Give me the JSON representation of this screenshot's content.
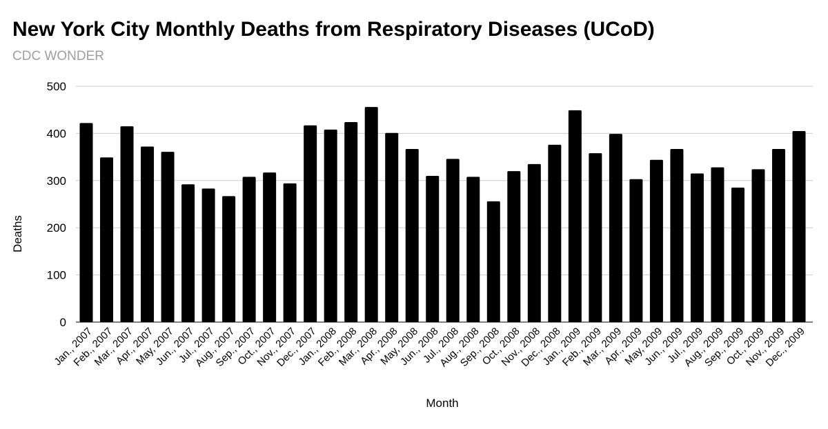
{
  "chart_data": {
    "type": "bar",
    "title": "New York City Monthly Deaths from Respiratory Diseases (UCoD)",
    "subtitle": "CDC WONDER",
    "xlabel": "Month",
    "ylabel": "Deaths",
    "ylim": [
      0,
      500
    ],
    "yticks": [
      0,
      100,
      200,
      300,
      400,
      500
    ],
    "grid": true,
    "bar_color": "#000000",
    "grid_color": "#cccccc",
    "categories": [
      "Jan., 2007",
      "Feb., 2007",
      "Mar., 2007",
      "Apr., 2007",
      "May, 2007",
      "Jun., 2007",
      "Jul., 2007",
      "Aug., 2007",
      "Sep., 2007",
      "Oct., 2007",
      "Nov., 2007",
      "Dec., 2007",
      "Jan., 2008",
      "Feb., 2008",
      "Mar., 2008",
      "Apr., 2008",
      "May, 2008",
      "Jun., 2008",
      "Jul., 2008",
      "Aug., 2008",
      "Sep., 2008",
      "Oct., 2008",
      "Nov., 2008",
      "Dec., 2008",
      "Jan., 2009",
      "Feb., 2009",
      "Mar., 2009",
      "Apr., 2009",
      "May, 2009",
      "Jun., 2009",
      "Jul., 2009",
      "Aug., 2009",
      "Sep., 2009",
      "Oct., 2009",
      "Nov., 2009",
      "Dec., 2009"
    ],
    "values": [
      422,
      349,
      415,
      372,
      361,
      292,
      283,
      267,
      308,
      317,
      294,
      417,
      408,
      424,
      456,
      401,
      367,
      310,
      346,
      308,
      256,
      320,
      335,
      376,
      449,
      358,
      399,
      303,
      344,
      367,
      315,
      328,
      285,
      324,
      367,
      405
    ]
  }
}
